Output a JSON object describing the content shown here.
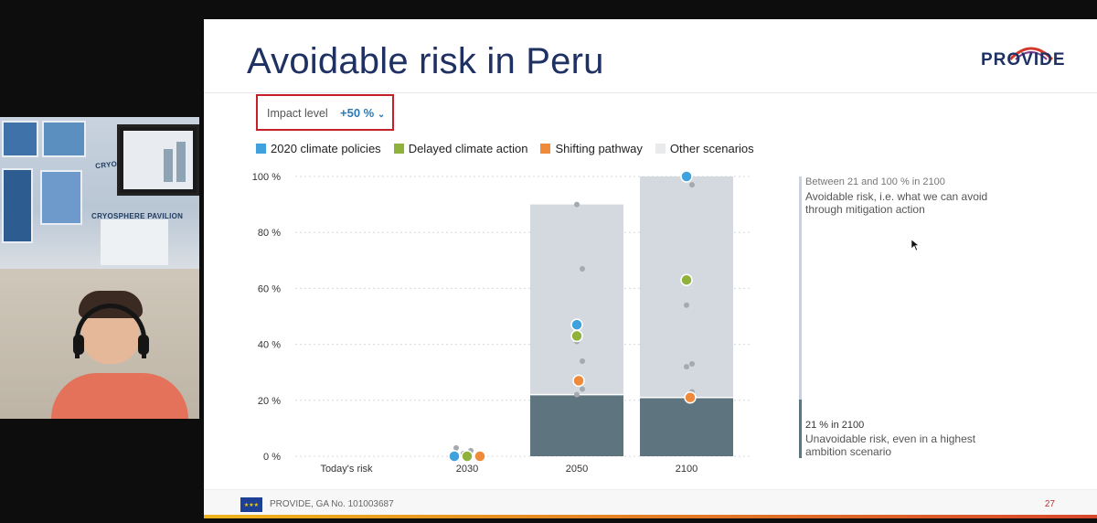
{
  "slide": {
    "title": "Avoidable risk in Peru",
    "logo": "PROVIDE",
    "impact_label": "Impact level",
    "impact_value": "+50 %",
    "footer_text": "PROVIDE, GA No. 101003687",
    "page_number": "27"
  },
  "legend": [
    {
      "label": "2020 climate policies",
      "color": "#3fa2dc"
    },
    {
      "label": "Delayed climate action",
      "color": "#8fb23d"
    },
    {
      "label": "Shifting pathway",
      "color": "#ef8a3a"
    },
    {
      "label": "Other scenarios",
      "color": "#e9eaec"
    }
  ],
  "annotations": {
    "upper_range": "Between 21 and 100 % in 2100",
    "upper_text_1": "Avoidable risk, i.e. what we can avoid",
    "upper_text_2": "through mitigation action",
    "lower_range": "21 % in 2100",
    "lower_text_1": "Unavoidable risk, even in a highest",
    "lower_text_2": "ambition scenario"
  },
  "chart_data": {
    "type": "bar",
    "categories": [
      "Today's risk",
      "2030",
      "2050",
      "2100"
    ],
    "ylim": [
      0,
      100
    ],
    "yticks": [
      "0 %",
      "20 %",
      "40 %",
      "60 %",
      "80 %",
      "100 %"
    ],
    "bars": [
      {
        "category": "2050",
        "unavoidable": 22,
        "total": 90
      },
      {
        "category": "2100",
        "unavoidable": 21,
        "total": 100
      }
    ],
    "series": [
      {
        "name": "2020 climate policies",
        "color": "#3fa2dc",
        "points": [
          {
            "x": "2030",
            "y": 0
          },
          {
            "x": "2050",
            "y": 47
          },
          {
            "x": "2100",
            "y": 100
          }
        ]
      },
      {
        "name": "Delayed climate action",
        "color": "#8fb23d",
        "points": [
          {
            "x": "2030",
            "y": 0
          },
          {
            "x": "2050",
            "y": 43
          },
          {
            "x": "2100",
            "y": 63
          }
        ]
      },
      {
        "name": "Shifting pathway",
        "color": "#ef8a3a",
        "points": [
          {
            "x": "2030",
            "y": 0
          },
          {
            "x": "2050",
            "y": 27
          },
          {
            "x": "2100",
            "y": 21
          }
        ]
      }
    ],
    "other_scenarios": [
      {
        "x": "2030",
        "values": [
          3,
          1,
          2,
          0
        ]
      },
      {
        "x": "2050",
        "values": [
          90,
          67,
          41,
          34,
          27,
          24,
          22
        ]
      },
      {
        "x": "2100",
        "values": [
          100,
          97,
          54,
          33,
          32,
          23
        ]
      }
    ],
    "grid": true
  }
}
